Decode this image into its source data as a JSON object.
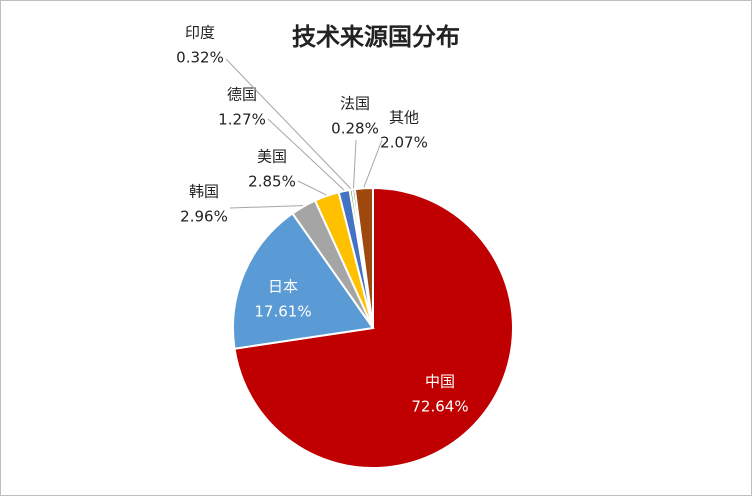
{
  "chart_data": {
    "type": "pie",
    "title": "技术来源国分布",
    "categories": [
      "中国",
      "日本",
      "韩国",
      "美国",
      "德国",
      "印度",
      "法国",
      "其他"
    ],
    "values": [
      72.64,
      17.61,
      2.96,
      2.85,
      1.27,
      0.32,
      0.28,
      2.07
    ],
    "value_labels": [
      "72.64%",
      "17.61%",
      "2.96%",
      "2.85%",
      "1.27%",
      "0.32%",
      "0.28%",
      "2.07%"
    ],
    "colors": [
      "#c00000",
      "#5b9bd5",
      "#a5a5a5",
      "#ffc000",
      "#4472c4",
      "#70ad47",
      "#264478",
      "#9e480e"
    ]
  }
}
